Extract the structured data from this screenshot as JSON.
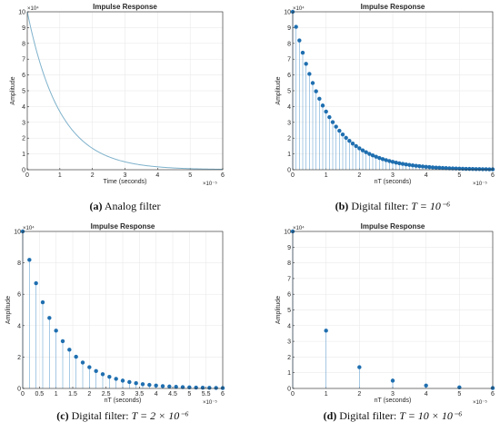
{
  "chart_data": [
    {
      "panel": "a",
      "type": "line",
      "title": "Impulse Response",
      "xlabel": "Time (seconds)",
      "ylabel": "Amplitude",
      "x_exponent": "×10⁻⁵",
      "y_exponent": "×10⁴",
      "xlim": [
        0,
        6
      ],
      "ylim": [
        0,
        10
      ],
      "xticks": [
        "0",
        "1",
        "2",
        "3",
        "4",
        "5",
        "6"
      ],
      "yticks": [
        "0",
        "1",
        "2",
        "3",
        "4",
        "5",
        "6",
        "7",
        "8",
        "9",
        "10"
      ],
      "model": {
        "amplitude": 10,
        "decay_per_unit": 1,
        "x_step": 0.1
      },
      "grid": true,
      "color": "#7fb2cc",
      "caption": {
        "label": "(a)",
        "text": " Analog filter"
      }
    },
    {
      "panel": "b",
      "type": "scatter",
      "style": "stem",
      "title": "Impulse Response",
      "xlabel": "nT (seconds)",
      "ylabel": "Amplitude",
      "x_exponent": "×10⁻⁵",
      "y_exponent": "×10⁴",
      "xlim": [
        0,
        6
      ],
      "ylim": [
        0,
        10
      ],
      "xticks": [
        "0",
        "1",
        "2",
        "3",
        "4",
        "5",
        "6"
      ],
      "yticks": [
        "0",
        "1",
        "2",
        "3",
        "4",
        "5",
        "6",
        "7",
        "8",
        "9",
        "10"
      ],
      "model": {
        "amplitude": 10,
        "decay_per_unit": 1,
        "x_step": 0.1
      },
      "grid": true,
      "color": "#1f6fb0",
      "caption": {
        "label": "(b)",
        "text": " Digital filter: ",
        "formula": "T = 10⁻⁶"
      }
    },
    {
      "panel": "c",
      "type": "scatter",
      "style": "stem",
      "title": "Impulse Response",
      "xlabel": "nT (seconds)",
      "ylabel": "Amplitude",
      "x_exponent": "×10⁻⁵",
      "y_exponent": "×10⁴",
      "xlim": [
        0,
        6
      ],
      "ylim": [
        0,
        10
      ],
      "xticks": [
        "0",
        "0.5",
        "1",
        "1.5",
        "2",
        "2.5",
        "3",
        "3.5",
        "4",
        "4.5",
        "5",
        "5.5",
        "6"
      ],
      "yticks": [
        "0",
        "2",
        "4",
        "6",
        "8",
        "10"
      ],
      "model": {
        "amplitude": 10,
        "decay_per_unit": 1,
        "x_step": 0.2
      },
      "grid": true,
      "color": "#1f6fb0",
      "caption": {
        "label": "(c)",
        "text": " Digital filter: ",
        "formula": "T = 2 × 10⁻⁶"
      }
    },
    {
      "panel": "d",
      "type": "scatter",
      "style": "stem",
      "title": "Impulse Response",
      "xlabel": "nT (seconds)",
      "ylabel": "Amplitude",
      "x_exponent": "×10⁻⁵",
      "y_exponent": "×10⁴",
      "xlim": [
        0,
        6
      ],
      "ylim": [
        0,
        10
      ],
      "xticks": [
        "0",
        "1",
        "2",
        "3",
        "4",
        "5",
        "6"
      ],
      "yticks": [
        "0",
        "1",
        "2",
        "3",
        "4",
        "5",
        "6",
        "7",
        "8",
        "9",
        "10"
      ],
      "model": {
        "amplitude": 10,
        "decay_per_unit": 1,
        "x_step": 1
      },
      "grid": true,
      "color": "#1f6fb0",
      "caption": {
        "label": "(d)",
        "text": " Digital filter: ",
        "formula": "T = 10 × 10⁻⁶"
      }
    }
  ]
}
